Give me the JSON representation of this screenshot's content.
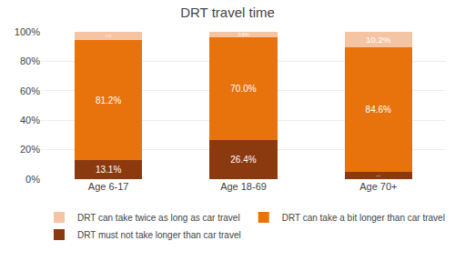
{
  "chart_data": {
    "type": "bar",
    "title": "DRT travel time",
    "categories": [
      "Age 6-17",
      "Age 18-69",
      "Age 70+"
    ],
    "series": [
      {
        "name": "DRT must not take longer than car travel",
        "color": "#8B3A0F",
        "values": [
          13.1,
          26.4,
          5.1
        ],
        "value_labels": [
          "13.1%",
          "26.4%",
          "5.1%"
        ]
      },
      {
        "name": "DRT can take a bit longer than car travel",
        "color": "#E8720C",
        "values": [
          81.2,
          70.0,
          84.6
        ],
        "value_labels": [
          "81.2%",
          "70.0%",
          "84.6%"
        ]
      },
      {
        "name": "DRT can take twice as long as car travel",
        "color": "#F5C5A3",
        "values": [
          5.7,
          3.6,
          10.2
        ],
        "value_labels": [
          "5.7%",
          "3.6%",
          "10.2%"
        ]
      }
    ],
    "stacked": true,
    "data_labels": true,
    "ylim": [
      0,
      100
    ],
    "yticks": [
      {
        "value": 0,
        "label": "0%"
      },
      {
        "value": 20,
        "label": "20%"
      },
      {
        "value": 40,
        "label": "40%"
      },
      {
        "value": 60,
        "label": "60%"
      },
      {
        "value": 80,
        "label": "80%"
      },
      {
        "value": 100,
        "label": "100%"
      }
    ],
    "grid": true,
    "legend": "bottom"
  }
}
